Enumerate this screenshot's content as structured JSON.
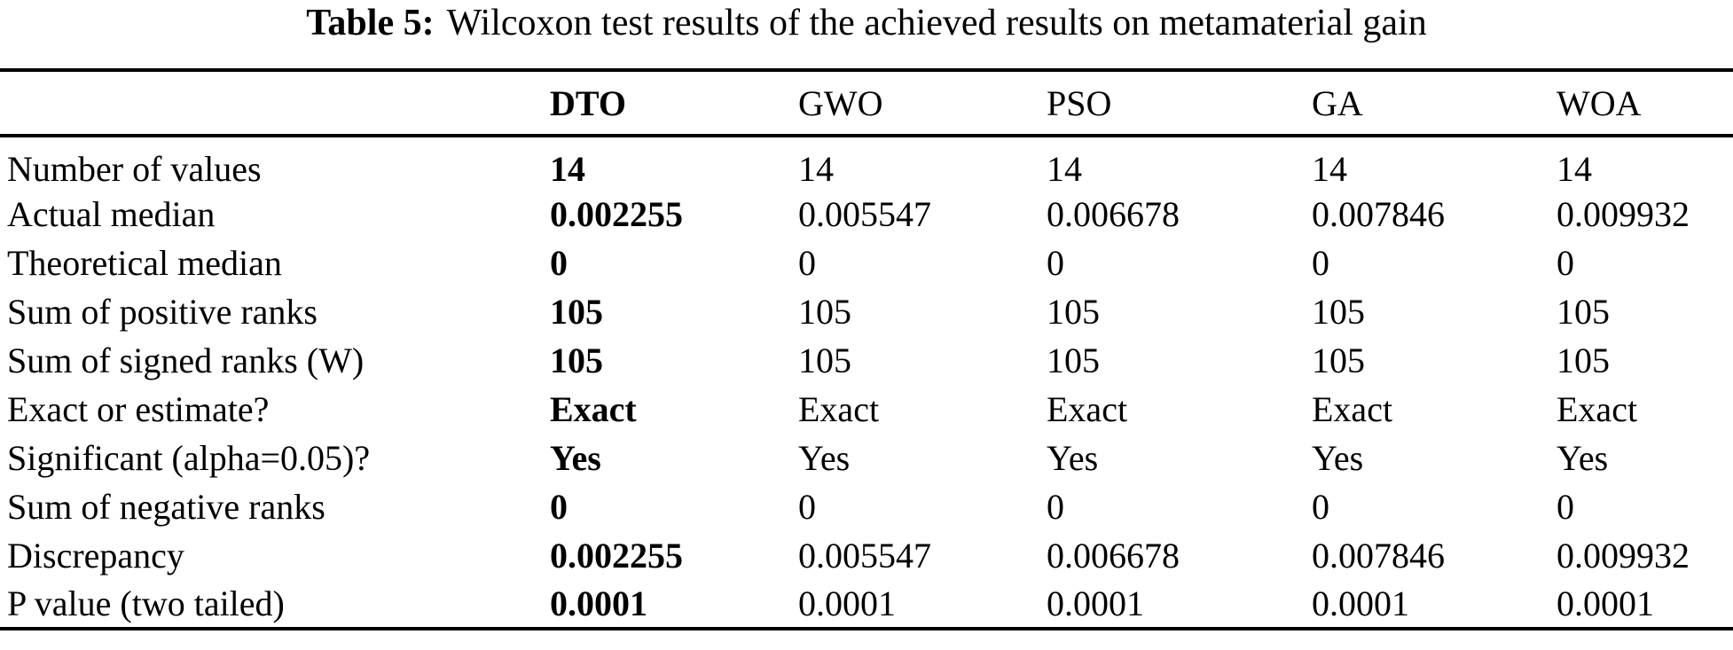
{
  "page": {
    "background_color": "#ffffff",
    "text_color": "#000000"
  },
  "caption": {
    "label": "Table 5:",
    "text": "Wilcoxon test results of the achieved results on metamaterial gain"
  },
  "table": {
    "columns": [
      {
        "key": "metric",
        "label": ""
      },
      {
        "key": "dto",
        "label": "DTO"
      },
      {
        "key": "gwo",
        "label": "GWO"
      },
      {
        "key": "pso",
        "label": "PSO"
      },
      {
        "key": "ga",
        "label": "GA"
      },
      {
        "key": "woa",
        "label": "WOA"
      }
    ],
    "highlighted_column": "DTO",
    "rows": [
      {
        "label": "Number of values",
        "values": [
          "14",
          "14",
          "14",
          "14",
          "14"
        ]
      },
      {
        "label": "Actual median",
        "values": [
          "0.002255",
          "0.005547",
          "0.006678",
          "0.007846",
          "0.009932"
        ]
      },
      {
        "label": "Theoretical median",
        "values": [
          "0",
          "0",
          "0",
          "0",
          "0"
        ]
      },
      {
        "label": "Sum of positive ranks",
        "values": [
          "105",
          "105",
          "105",
          "105",
          "105"
        ]
      },
      {
        "label": "Sum of signed ranks (W)",
        "values": [
          "105",
          "105",
          "105",
          "105",
          "105"
        ]
      },
      {
        "label": "Exact or estimate?",
        "values": [
          "Exact",
          "Exact",
          "Exact",
          "Exact",
          "Exact"
        ]
      },
      {
        "label": "Significant (alpha=0.05)?",
        "values": [
          "Yes",
          "Yes",
          "Yes",
          "Yes",
          "Yes"
        ]
      },
      {
        "label": "Sum of negative ranks",
        "values": [
          "0",
          "0",
          "0",
          "0",
          "0"
        ]
      },
      {
        "label": "Discrepancy",
        "values": [
          "0.002255",
          "0.005547",
          "0.006678",
          "0.007846",
          "0.009932"
        ]
      },
      {
        "label": "P value (two tailed)",
        "values": [
          "0.0001",
          "0.0001",
          "0.0001",
          "0.0001",
          "0.0001"
        ]
      }
    ]
  }
}
